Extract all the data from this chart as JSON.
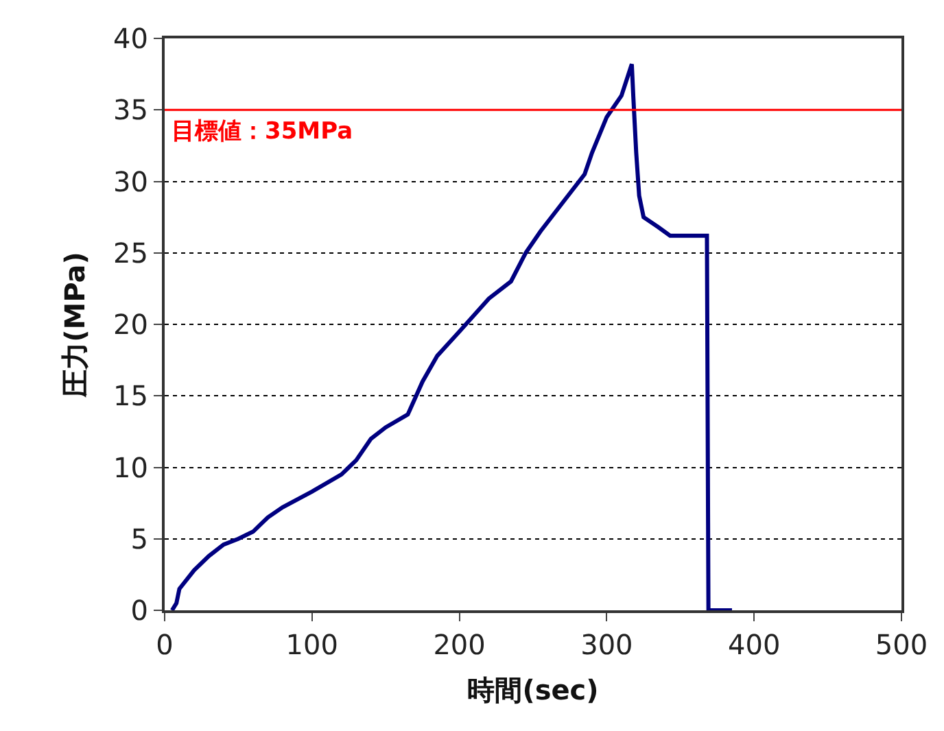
{
  "chart_data": {
    "type": "line",
    "xlabel": "時間(sec)",
    "ylabel": "圧力(MPa)",
    "xlim": [
      0,
      500
    ],
    "xticks": [
      0,
      100,
      200,
      300,
      400,
      500
    ],
    "ylim": [
      0,
      40
    ],
    "yticks": [
      0,
      5,
      10,
      15,
      20,
      25,
      30,
      35,
      40
    ],
    "grid": "y",
    "marker": "none",
    "line_style": "solid",
    "x": [
      5,
      8,
      10,
      20,
      30,
      40,
      50,
      60,
      70,
      80,
      100,
      120,
      130,
      140,
      150,
      165,
      175,
      185,
      200,
      220,
      235,
      245,
      255,
      270,
      285,
      290,
      300,
      310,
      317,
      318,
      320,
      322,
      325,
      335,
      343,
      368,
      369,
      385
    ],
    "series": [
      {
        "color": "#000080",
        "values": [
          0,
          0.5,
          1.5,
          2.8,
          3.8,
          4.6,
          5,
          5.5,
          6.5,
          7.2,
          8.3,
          9.5,
          10.5,
          12,
          12.8,
          13.7,
          16,
          17.8,
          19.5,
          21.8,
          23,
          25,
          26.5,
          28.5,
          30.5,
          32,
          34.5,
          36,
          38.2,
          36,
          32,
          29,
          27.5,
          26.8,
          26.2,
          26.2,
          0,
          0
        ]
      }
    ],
    "ref_lines": [
      {
        "axis": "y",
        "value": 35,
        "label": "目標値：35MPa",
        "color": "#ff0000",
        "line_style": "solid"
      }
    ]
  }
}
